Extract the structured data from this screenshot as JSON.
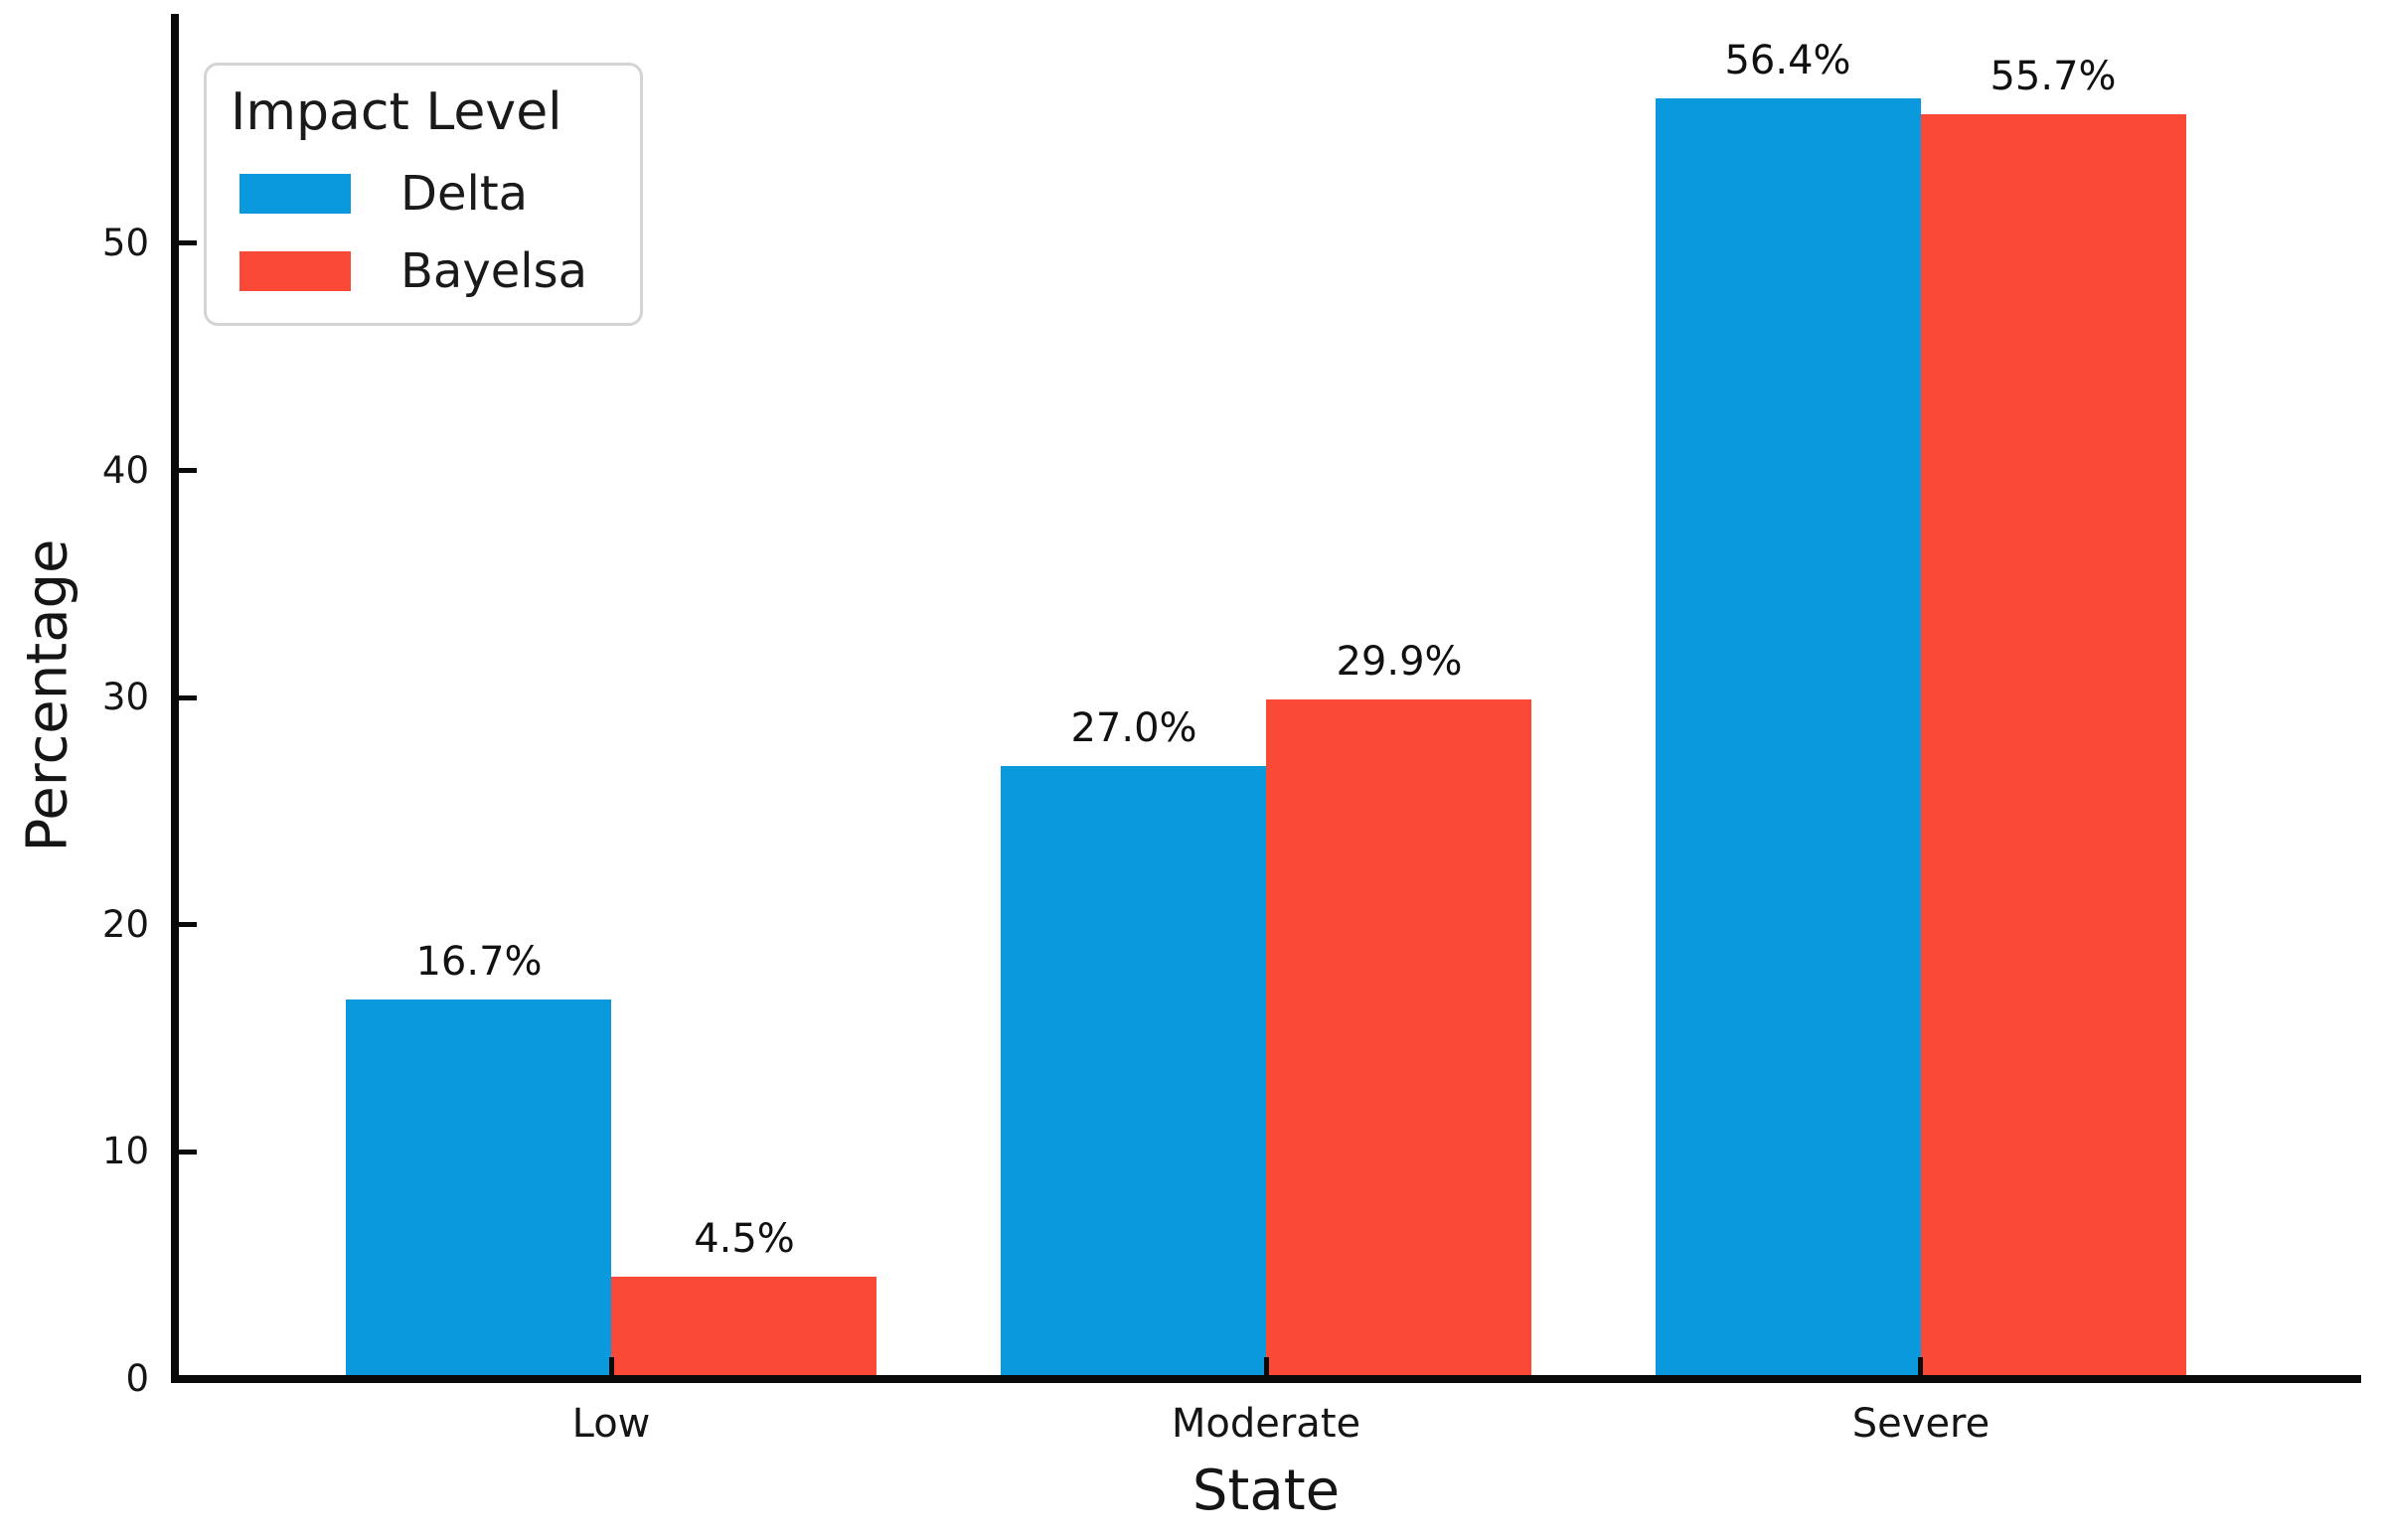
{
  "chart_data": {
    "type": "bar",
    "title": "",
    "xlabel": "State",
    "ylabel": "Percentage",
    "categories": [
      "Low",
      "Moderate",
      "Severe"
    ],
    "series": [
      {
        "name": "Delta",
        "color": "#0A99DC",
        "values": [
          16.7,
          27.0,
          56.4
        ],
        "labels": [
          "16.7%",
          "27.0%",
          "56.4%"
        ]
      },
      {
        "name": "Bayelsa",
        "color": "#FB4938",
        "values": [
          4.5,
          29.9,
          55.7
        ],
        "labels": [
          "4.5%",
          "29.9%",
          "55.7%"
        ]
      }
    ],
    "y_ticks": [
      0,
      10,
      20,
      30,
      40,
      50
    ],
    "ylim": [
      0,
      60.1
    ],
    "grid": false,
    "legend": {
      "title": "Impact Level",
      "position": "upper left"
    }
  },
  "colors": {
    "background": "#ffffff",
    "axis": "#0a0a0a",
    "text": "#151515",
    "legend_border": "#d4d4d4"
  }
}
